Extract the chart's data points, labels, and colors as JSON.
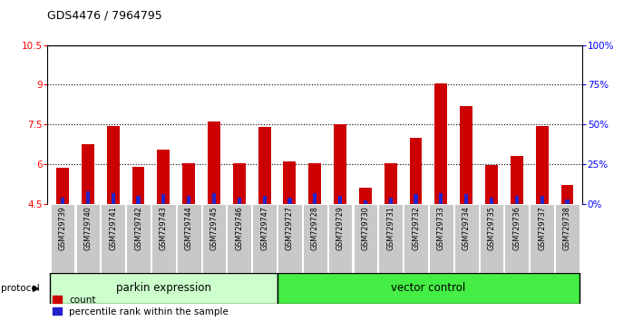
{
  "title": "GDS4476 / 7964795",
  "samples": [
    "GSM729739",
    "GSM729740",
    "GSM729741",
    "GSM729742",
    "GSM729743",
    "GSM729744",
    "GSM729745",
    "GSM729746",
    "GSM729747",
    "GSM729727",
    "GSM729728",
    "GSM729729",
    "GSM729730",
    "GSM729731",
    "GSM729732",
    "GSM729733",
    "GSM729734",
    "GSM729735",
    "GSM729736",
    "GSM729737",
    "GSM729738"
  ],
  "count_values": [
    5.85,
    6.75,
    7.45,
    5.9,
    6.55,
    6.05,
    7.6,
    6.05,
    7.4,
    6.1,
    6.05,
    7.5,
    5.1,
    6.05,
    7.0,
    9.05,
    8.2,
    5.95,
    6.3,
    7.45,
    5.2
  ],
  "percentile_values": [
    4,
    8,
    7,
    5,
    6,
    5,
    7,
    4,
    5,
    4,
    7,
    5,
    2,
    4,
    6,
    7,
    6,
    4,
    5,
    5,
    3
  ],
  "ylim_left": [
    4.5,
    10.5
  ],
  "ylim_right": [
    0,
    100
  ],
  "yticks_left": [
    4.5,
    6.0,
    7.5,
    9.0,
    10.5
  ],
  "yticks_right": [
    0,
    25,
    50,
    75,
    100
  ],
  "ytick_labels_left": [
    "4.5",
    "6",
    "7.5",
    "9",
    "10.5"
  ],
  "ytick_labels_right": [
    "0%",
    "25%",
    "50%",
    "75%",
    "100%"
  ],
  "bar_color_red": "#cc0000",
  "bar_color_blue": "#2222cc",
  "parkin_label": "parkin expression",
  "vector_label": "vector control",
  "protocol_label": "protocol",
  "legend_count": "count",
  "legend_percentile": "percentile rank within the sample",
  "parkin_color": "#ccffcc",
  "vector_color": "#44ee44",
  "bar_width": 0.5,
  "label_area_color": "#c8c8c8",
  "n_parkin": 9,
  "n_vector": 12
}
